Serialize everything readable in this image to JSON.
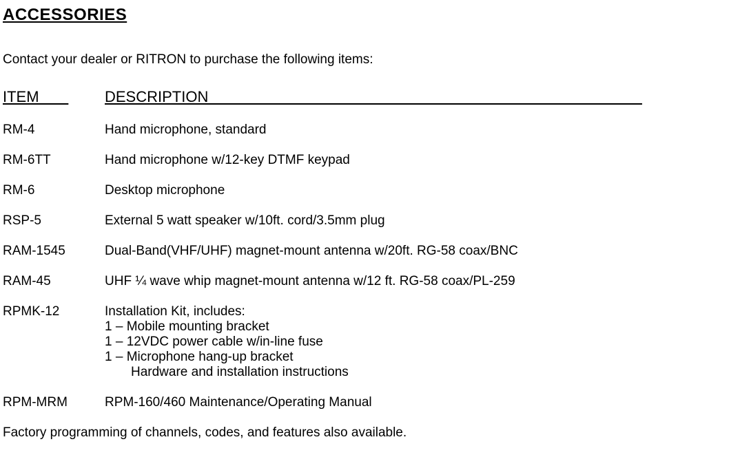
{
  "section_title": "ACCESSORIES",
  "intro": "Contact your dealer or RITRON to purchase the following items:",
  "headers": {
    "item": "ITEM       ",
    "description": "DESCRIPTION                                                                                                       "
  },
  "items": [
    {
      "code": "RM-4",
      "desc": "Hand microphone, standard"
    },
    {
      "code": "RM-6TT",
      "desc": "Hand microphone w/12-key DTMF keypad"
    },
    {
      "code": "RM-6",
      "desc": "Desktop microphone"
    },
    {
      "code": "RSP-5",
      "desc": "External 5 watt speaker w/10ft. cord/3.5mm plug"
    },
    {
      "code": "RAM-1545",
      "desc": "Dual-Band(VHF/UHF) magnet-mount antenna w/20ft. RG-58 coax/BNC"
    },
    {
      "code": "RAM-45",
      "desc": "UHF ¼ wave whip magnet-mount antenna w/12 ft. RG-58 coax/PL-259"
    }
  ],
  "kit": {
    "code": "RPMK-12",
    "title": "Installation Kit, includes:",
    "lines": [
      "1 – Mobile mounting bracket",
      "1 – 12VDC power cable w/in-line fuse",
      "1 – Microphone hang-up bracket"
    ],
    "indent_line": "Hardware and installation instructions"
  },
  "manual": {
    "code": "RPM-MRM",
    "desc": "RPM-160/460 Maintenance/Operating Manual"
  },
  "footer": "Factory programming of channels, codes, and features also available.",
  "colors": {
    "text": "#000000",
    "background": "#ffffff"
  },
  "typography": {
    "title_fontsize": 24,
    "header_fontsize": 22,
    "body_fontsize": 19,
    "font_family": "Arial"
  }
}
